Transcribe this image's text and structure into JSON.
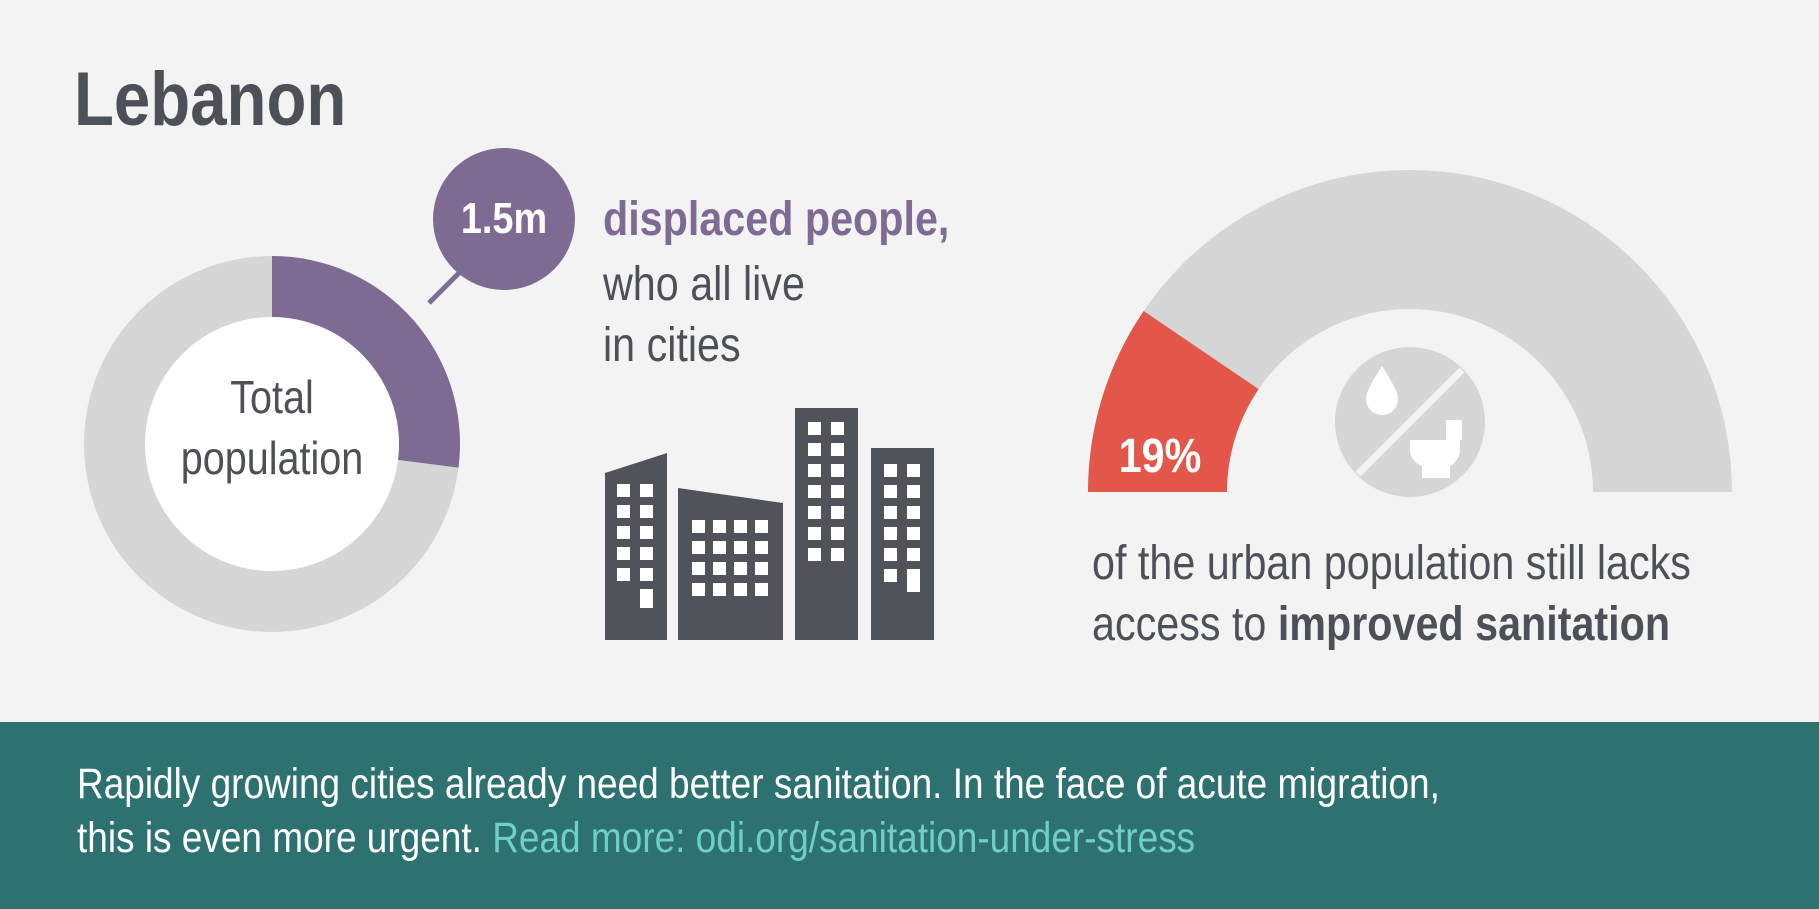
{
  "title": "Lebanon",
  "donut": {
    "center_line1": "Total",
    "center_line2": "population",
    "bubble_value": "1.5m",
    "displaced_fraction": 0.27,
    "highlight_color": "#7d6b94",
    "base_color": "#d6d6d6"
  },
  "displaced": {
    "headline": "displaced people,",
    "line2": "who all live",
    "line3": "in cities",
    "icon": "city-buildings-icon"
  },
  "gauge": {
    "value_label": "19%",
    "value_fraction": 0.19,
    "fill_color": "#e3574b",
    "base_color": "#d6d6d6",
    "icon": "no-water-no-toilet-icon",
    "caption_line1": "of the urban population still lacks",
    "caption_line2_prefix": "access to ",
    "caption_line2_bold": "improved sanitation"
  },
  "footer": {
    "line1": "Rapidly growing cities already need better sanitation. In the face of acute migration,",
    "line2": "this is even more urgent. ",
    "link": "Read more: odi.org/sanitation-under-stress",
    "logo": "odi-logo",
    "bg_color": "#2d7270",
    "link_color": "#6fcfc3"
  }
}
